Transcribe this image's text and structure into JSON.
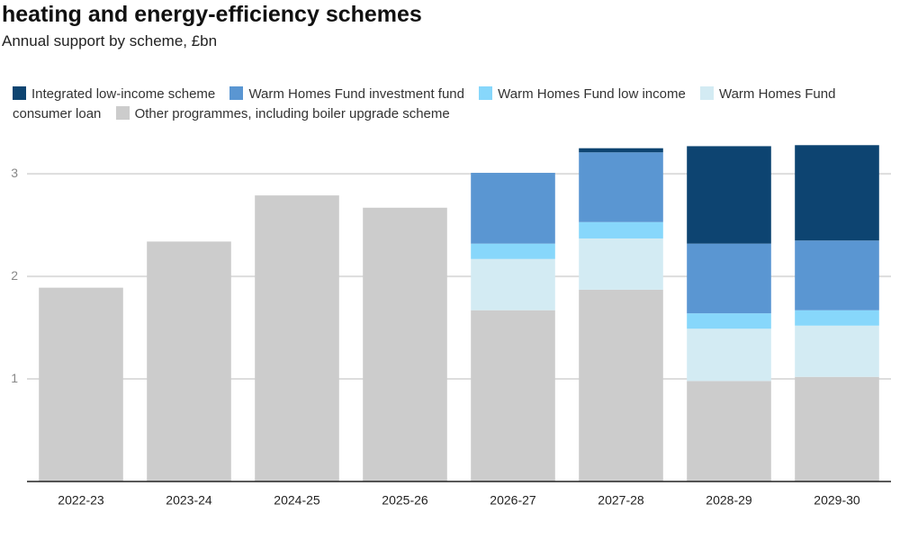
{
  "chart_data": {
    "type": "stacked_bar",
    "title": "heating and energy-efficiency schemes",
    "subtitle": "Annual support by scheme, £bn",
    "categories": [
      "2022-23",
      "2023-24",
      "2024-25",
      "2025-26",
      "2026-27",
      "2027-28",
      "2028-29",
      "2029-30"
    ],
    "series": [
      {
        "name": "Integrated low-income scheme",
        "color": "#0d4471",
        "values": [
          null,
          null,
          null,
          null,
          null,
          0.04,
          0.95,
          0.93
        ]
      },
      {
        "name": "Warm Homes Fund investment fund",
        "color": "#5a96d2",
        "values": [
          null,
          null,
          null,
          null,
          0.69,
          0.68,
          0.68,
          0.68
        ]
      },
      {
        "name": "Warm Homes Fund low income",
        "color": "#87d7fb",
        "values": [
          null,
          null,
          null,
          null,
          0.15,
          0.16,
          0.15,
          0.15
        ]
      },
      {
        "name": "Warm Homes Fund consumer loan",
        "color": "#d3ebf3",
        "values": [
          null,
          null,
          null,
          null,
          0.5,
          0.5,
          0.51,
          0.5
        ]
      },
      {
        "name": "Other programmes, including boiler upgrade scheme",
        "color": "#cccccc",
        "values": [
          1.89,
          2.34,
          2.79,
          2.67,
          1.67,
          1.87,
          0.98,
          1.02
        ]
      }
    ],
    "ylim": [
      0,
      3.3
    ],
    "yticks": [
      1,
      2,
      3
    ],
    "grid": true
  }
}
